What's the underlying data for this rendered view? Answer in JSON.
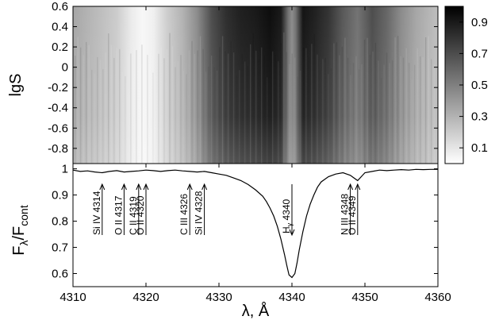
{
  "chart_data": [
    {
      "type": "heatmap",
      "ylabel": "lgS",
      "xlim": [
        4310,
        4360
      ],
      "ylim": [
        -0.95,
        0.6
      ],
      "y_ticks": [
        "0.6",
        "0.4",
        "0.2",
        "0",
        "-0.2",
        "-0.4",
        "-0.6",
        "-0.8"
      ],
      "y_tick_values": [
        0.6,
        0.4,
        0.2,
        0,
        -0.2,
        -0.4,
        -0.6,
        -0.8
      ],
      "colorbar": {
        "range": [
          0,
          1
        ],
        "ticks": [
          "0.9",
          "0.7",
          "0.5",
          "0.3",
          "0.1"
        ],
        "tick_values": [
          0.9,
          0.7,
          0.5,
          0.3,
          0.1
        ],
        "colormap": "white-to-black"
      },
      "x_tick_values": [
        4310,
        4320,
        4330,
        4340,
        4350,
        4360
      ],
      "intensity_profile": {
        "x": [
          4310,
          4312,
          4314,
          4316,
          4318,
          4319.5,
          4321,
          4323,
          4325,
          4327,
          4329,
          4331,
          4333,
          4335,
          4337,
          4338.5,
          4339.5,
          4340,
          4340.5,
          4341.5,
          4343,
          4345,
          4347,
          4349,
          4351,
          4353,
          4355,
          4357,
          4360
        ],
        "values": [
          0.35,
          0.3,
          0.25,
          0.2,
          0.08,
          0.03,
          0.06,
          0.2,
          0.3,
          0.45,
          0.7,
          0.82,
          0.88,
          0.9,
          0.95,
          0.9,
          0.55,
          0.45,
          0.55,
          0.92,
          0.88,
          0.8,
          0.65,
          0.55,
          0.7,
          0.6,
          0.45,
          0.35,
          0.25
        ]
      }
    },
    {
      "type": "line",
      "ylabel_main": "F",
      "ylabel_sub1": "λ",
      "ylabel_mid": "/F",
      "ylabel_sub2": "cont",
      "xlabel": "λ, Å",
      "xlim": [
        4310,
        4360
      ],
      "ylim": [
        0.55,
        1.02
      ],
      "x_ticks": [
        "4310",
        "4320",
        "4330",
        "4340",
        "4350",
        "4360"
      ],
      "x_tick_values": [
        4310,
        4320,
        4330,
        4340,
        4350,
        4360
      ],
      "y_ticks": [
        "1",
        "0.9",
        "0.8",
        "0.7",
        "0.6"
      ],
      "y_tick_values": [
        1.0,
        0.9,
        0.8,
        0.7,
        0.6
      ],
      "series": [
        {
          "x": [
            4310,
            4311,
            4312,
            4313,
            4314,
            4315,
            4316,
            4317,
            4318,
            4319,
            4320,
            4321,
            4322,
            4323,
            4324,
            4325,
            4326,
            4327,
            4328,
            4329,
            4330,
            4331,
            4332,
            4333,
            4334,
            4335,
            4336,
            4336.5,
            4337,
            4337.5,
            4338,
            4338.5,
            4339,
            4339.3,
            4339.6,
            4340,
            4340.4,
            4340.7,
            4341,
            4341.5,
            4342,
            4342.5,
            4343,
            4343.5,
            4344,
            4345,
            4346,
            4347,
            4347.5,
            4348,
            4348.5,
            4349,
            4349.5,
            4350,
            4351,
            4352,
            4353,
            4354,
            4355,
            4356,
            4357,
            4358,
            4359,
            4360
          ],
          "values": [
            0.995,
            0.99,
            0.992,
            0.988,
            0.985,
            0.99,
            0.993,
            0.988,
            0.99,
            0.992,
            0.995,
            0.993,
            0.99,
            0.993,
            0.995,
            0.992,
            0.99,
            0.988,
            0.99,
            0.985,
            0.98,
            0.975,
            0.965,
            0.955,
            0.94,
            0.92,
            0.895,
            0.875,
            0.85,
            0.82,
            0.78,
            0.73,
            0.67,
            0.63,
            0.595,
            0.585,
            0.6,
            0.64,
            0.69,
            0.76,
            0.82,
            0.865,
            0.9,
            0.93,
            0.95,
            0.97,
            0.98,
            0.985,
            0.98,
            0.975,
            0.965,
            0.955,
            0.97,
            0.985,
            0.99,
            0.995,
            0.993,
            0.995,
            0.997,
            0.995,
            0.998,
            0.997,
            0.998,
            0.998
          ]
        }
      ],
      "annotations": [
        {
          "label": "Si IV 4314",
          "x": 4314,
          "direction": "up"
        },
        {
          "label": "O II 4317",
          "x": 4317,
          "direction": "up"
        },
        {
          "label": "C II 4319",
          "x": 4319,
          "direction": "up"
        },
        {
          "label": "O II 4320",
          "x": 4320,
          "direction": "up"
        },
        {
          "label": "C III 4326",
          "x": 4326,
          "direction": "up"
        },
        {
          "label": "Si IV 4328",
          "x": 4328,
          "direction": "up"
        },
        {
          "label": "H",
          "label_sub": "γ",
          "label_tail": " 4340",
          "x": 4340,
          "direction": "down"
        },
        {
          "label": "O II 4349",
          "x": 4349,
          "direction": "up"
        },
        {
          "label": "N III 4348",
          "x": 4348,
          "direction": "up"
        }
      ]
    }
  ]
}
